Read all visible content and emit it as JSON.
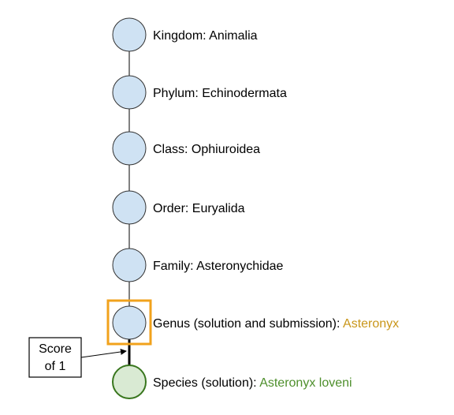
{
  "colors": {
    "node_fill": "#cfe2f3",
    "node_stroke": "#333333",
    "leaf_fill": "#d9ead3",
    "leaf_stroke": "#38761d",
    "highlight_box": "#f1a21c",
    "genus_accent": "#c9961a",
    "species_accent": "#4e8f2c"
  },
  "ranks": [
    {
      "label": "Kingdom: Animalia",
      "accent": ""
    },
    {
      "label": "Phylum: Echinodermata",
      "accent": ""
    },
    {
      "label": "Class: Ophiuroidea",
      "accent": ""
    },
    {
      "label": "Order: Euryalida",
      "accent": ""
    },
    {
      "label": "Family: Asteronychidae",
      "accent": ""
    },
    {
      "label": "Genus (solution and submission): ",
      "accent": "Asteronyx",
      "highlighted": true
    },
    {
      "label": "Species (solution): ",
      "accent": "Asteronyx loveni",
      "leaf": true
    }
  ],
  "callout": {
    "line1": "Score",
    "line2": "of 1"
  }
}
